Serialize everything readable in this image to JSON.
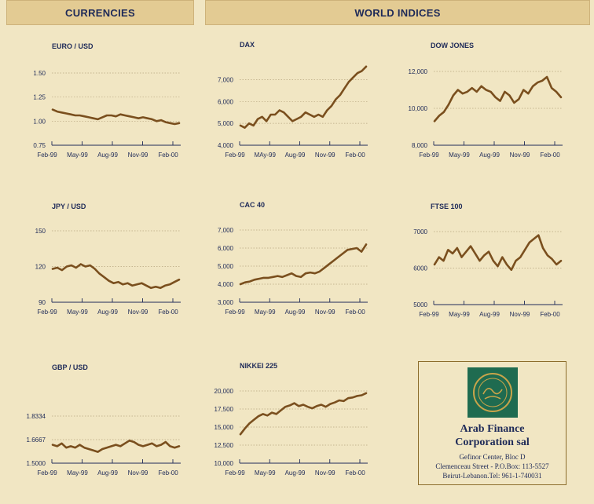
{
  "banners": {
    "currencies": "CURRENCIES",
    "world_indices": "WORLD INDICES"
  },
  "company": {
    "name_line1": "Arab Finance",
    "name_line2": "Corporation sal",
    "addr_line1": "Gefinor Center, Bloc D",
    "addr_line2": "Clemenceau Street - P.O.Box: 113-5527",
    "addr_line3": "Beirut-Lebanon.Tel: 961-1-740031"
  },
  "colors": {
    "line": "#7a4f1e",
    "text": "#1e2a58",
    "background": "#f1e6c3",
    "banner": "#e3cb93",
    "logo": "#1f6b50"
  },
  "chart_data": [
    {
      "id": "euro-usd",
      "type": "line",
      "title": "EURO / USD",
      "x_labels": [
        "Feb-99",
        "May-99",
        "Aug-99",
        "Nov-99",
        "Feb-00"
      ],
      "y_ticks": [
        "0.75",
        "1.00",
        "1.25",
        "1.50"
      ],
      "ylim": [
        0.75,
        1.5
      ],
      "grid": true,
      "values": [
        1.12,
        1.1,
        1.09,
        1.08,
        1.07,
        1.06,
        1.06,
        1.05,
        1.04,
        1.03,
        1.02,
        1.04,
        1.06,
        1.06,
        1.05,
        1.07,
        1.06,
        1.05,
        1.04,
        1.03,
        1.04,
        1.03,
        1.02,
        1.0,
        1.01,
        0.99,
        0.98,
        0.97,
        0.98
      ]
    },
    {
      "id": "dax",
      "type": "line",
      "title": "DAX",
      "x_labels": [
        "Feb-99",
        "MAy-99",
        "Aug-99",
        "Nov-99",
        "Feb-00"
      ],
      "y_ticks": [
        "4,000",
        "5,000",
        "6,000",
        "7,000"
      ],
      "ylim": [
        4000,
        7700
      ],
      "grid": true,
      "values": [
        4900,
        4800,
        5000,
        4900,
        5200,
        5300,
        5100,
        5400,
        5400,
        5600,
        5500,
        5300,
        5100,
        5200,
        5300,
        5500,
        5400,
        5300,
        5400,
        5300,
        5600,
        5800,
        6100,
        6300,
        6600,
        6900,
        7100,
        7300,
        7400,
        7600
      ]
    },
    {
      "id": "dow-jones",
      "type": "line",
      "title": "DOW JONES",
      "x_labels": [
        "Feb-99",
        "May-99",
        "Aug-99",
        "Nov-99",
        "Feb-00"
      ],
      "y_ticks": [
        "8,000",
        "10,000",
        "12,000"
      ],
      "ylim": [
        8000,
        12000
      ],
      "grid": true,
      "values": [
        9300,
        9600,
        9800,
        10200,
        10700,
        11000,
        10800,
        10900,
        11100,
        10900,
        11200,
        11000,
        10900,
        10600,
        10400,
        10900,
        10700,
        10300,
        10500,
        11000,
        10800,
        11200,
        11400,
        11500,
        11700,
        11100,
        10900,
        10600
      ]
    },
    {
      "id": "jpy-usd",
      "type": "line",
      "title": "JPY / USD",
      "x_labels": [
        "Feb-99",
        "May-99",
        "Aug-99",
        "Nov-99",
        "Feb-00"
      ],
      "y_ticks": [
        "90",
        "120",
        "150"
      ],
      "ylim": [
        90,
        150
      ],
      "grid": true,
      "values": [
        118,
        119,
        117,
        120,
        121,
        119,
        122,
        120,
        121,
        118,
        114,
        111,
        108,
        106,
        107,
        105,
        106,
        104,
        105,
        106,
        104,
        102,
        103,
        102,
        104,
        105,
        107,
        109
      ]
    },
    {
      "id": "cac-40",
      "type": "line",
      "title": "CAC 40",
      "x_labels": [
        "Feb-99",
        "May-99",
        "Aug-99",
        "Nov-99",
        "Feb-00"
      ],
      "y_ticks": [
        "3,000",
        "4,000",
        "5,000",
        "6,000",
        "7,000"
      ],
      "ylim": [
        3000,
        7000
      ],
      "grid": true,
      "values": [
        4000,
        4100,
        4150,
        4250,
        4300,
        4350,
        4350,
        4400,
        4450,
        4400,
        4500,
        4600,
        4450,
        4400,
        4600,
        4650,
        4600,
        4700,
        4900,
        5100,
        5300,
        5500,
        5700,
        5900,
        5950,
        6000,
        5800,
        6200
      ]
    },
    {
      "id": "ftse-100",
      "type": "line",
      "title": "FTSE 100",
      "x_labels": [
        "Feb-99",
        "May-99",
        "Aug-99",
        "Nov-99",
        "Feb-00"
      ],
      "y_ticks": [
        "5000",
        "6000",
        "7000"
      ],
      "ylim": [
        5000,
        7000
      ],
      "grid": true,
      "values": [
        6100,
        6300,
        6200,
        6500,
        6400,
        6550,
        6300,
        6450,
        6600,
        6400,
        6200,
        6350,
        6450,
        6200,
        6050,
        6300,
        6100,
        5950,
        6200,
        6300,
        6500,
        6700,
        6800,
        6900,
        6550,
        6350,
        6250,
        6100,
        6200
      ]
    },
    {
      "id": "gbp-usd",
      "type": "line",
      "title": "GBP / USD",
      "x_labels": [
        "Feb-99",
        "May-99",
        "Aug-99",
        "Nov-99",
        "Feb-00"
      ],
      "y_ticks": [
        "1.5000",
        "1.6667",
        "1.8334"
      ],
      "ylim": [
        1.5,
        1.8334
      ],
      "grid": true,
      "values": [
        1.63,
        1.62,
        1.64,
        1.61,
        1.62,
        1.61,
        1.63,
        1.61,
        1.6,
        1.59,
        1.58,
        1.6,
        1.61,
        1.62,
        1.63,
        1.62,
        1.64,
        1.66,
        1.65,
        1.63,
        1.62,
        1.63,
        1.64,
        1.62,
        1.63,
        1.65,
        1.62,
        1.61,
        1.62
      ]
    },
    {
      "id": "nikkei-225",
      "type": "line",
      "title": "NIKKEI 225",
      "x_labels": [
        "Feb-99",
        "May-99",
        "Aug-99",
        "Nov-99",
        "Feb-00"
      ],
      "y_ticks": [
        "10,000",
        "12,500",
        "15,000",
        "17,500",
        "20,000"
      ],
      "ylim": [
        10000,
        20000
      ],
      "grid": true,
      "values": [
        14000,
        14800,
        15500,
        16000,
        16500,
        16800,
        16600,
        17000,
        16800,
        17300,
        17800,
        18000,
        18300,
        17900,
        18100,
        17800,
        17600,
        17900,
        18100,
        17800,
        18200,
        18400,
        18700,
        18600,
        19000,
        19100,
        19300,
        19400,
        19700
      ]
    }
  ]
}
